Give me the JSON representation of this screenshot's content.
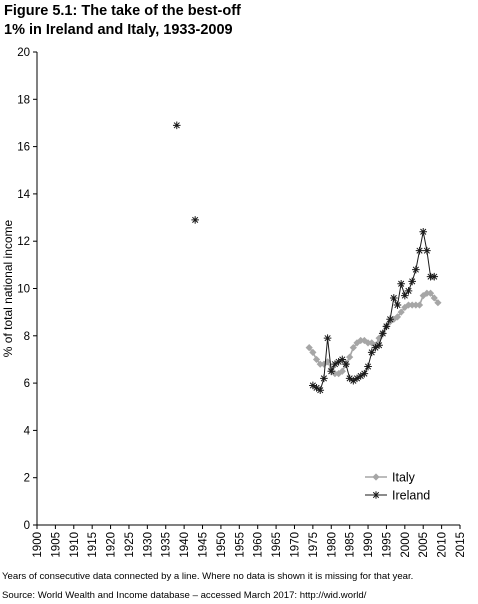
{
  "figure": {
    "title_line1": "Figure 5.1: The take of the best-off",
    "title_line2": "1% in Ireland and Italy, 1933-2009"
  },
  "notes": {
    "note1": "Years of consecutive data connected by a line. Where no data is shown it is missing for that year.",
    "source": "Source: World Wealth and Income database – accessed March 2017: http://wid.world/"
  },
  "colors": {
    "italy": "#a6a6a6",
    "ireland": "#1a1a1a",
    "axis": "#000000"
  },
  "chart_data": {
    "type": "line",
    "xlabel": "",
    "ylabel": "% of total national income",
    "xlim": [
      1900,
      2015
    ],
    "ylim": [
      0,
      20
    ],
    "x_ticks": [
      "1900",
      "1905",
      "1910",
      "1915",
      "1920",
      "1925",
      "1930",
      "1935",
      "1940",
      "1945",
      "1950",
      "1955",
      "1960",
      "1965",
      "1970",
      "1975",
      "1980",
      "1985",
      "1990",
      "1995",
      "2000",
      "2005",
      "2010",
      "2015"
    ],
    "y_ticks": [
      "0",
      "2",
      "4",
      "6",
      "8",
      "10",
      "12",
      "14",
      "16",
      "18",
      "20"
    ],
    "legend_position": "bottom-right",
    "series": [
      {
        "name": "Italy",
        "marker": "diamond",
        "x": [
          1974,
          1975,
          1976,
          1977,
          1978,
          1979,
          1980,
          1981,
          1982,
          1983,
          1984,
          1985,
          1986,
          1987,
          1988,
          1989,
          1990,
          1991,
          1992,
          1993,
          1994,
          1995,
          1996,
          1997,
          1998,
          1999,
          2000,
          2001,
          2002,
          2003,
          2004,
          2005,
          2006,
          2007,
          2008,
          2009
        ],
        "y": [
          7.5,
          7.3,
          7.0,
          6.8,
          6.8,
          6.9,
          6.6,
          6.4,
          6.4,
          6.5,
          6.8,
          7.1,
          7.5,
          7.7,
          7.8,
          7.8,
          7.7,
          7.7,
          7.6,
          7.9,
          8.1,
          8.4,
          8.6,
          8.7,
          8.8,
          9.0,
          9.2,
          9.3,
          9.3,
          9.3,
          9.3,
          9.7,
          9.8,
          9.8,
          9.6,
          9.4
        ]
      },
      {
        "name": "Ireland",
        "marker": "asterisk",
        "x": [
          1938,
          1943,
          1975,
          1976,
          1977,
          1978,
          1979,
          1980,
          1981,
          1982,
          1983,
          1984,
          1985,
          1986,
          1987,
          1988,
          1989,
          1990,
          1991,
          1992,
          1993,
          1994,
          1995,
          1996,
          1997,
          1998,
          1999,
          2000,
          2001,
          2002,
          2003,
          2004,
          2005,
          2006,
          2007,
          2008
        ],
        "y": [
          16.9,
          12.9,
          5.9,
          5.8,
          5.7,
          6.2,
          7.9,
          6.5,
          6.8,
          6.9,
          7.0,
          6.8,
          6.2,
          6.1,
          6.2,
          6.3,
          6.4,
          6.7,
          7.3,
          7.5,
          7.6,
          8.1,
          8.4,
          8.7,
          9.6,
          9.3,
          10.2,
          9.7,
          9.9,
          10.3,
          10.8,
          11.6,
          12.4,
          11.6,
          10.5,
          10.5
        ],
        "segments": [
          [
            0,
            0
          ],
          [
            1,
            1
          ],
          [
            2,
            35
          ]
        ]
      }
    ]
  }
}
